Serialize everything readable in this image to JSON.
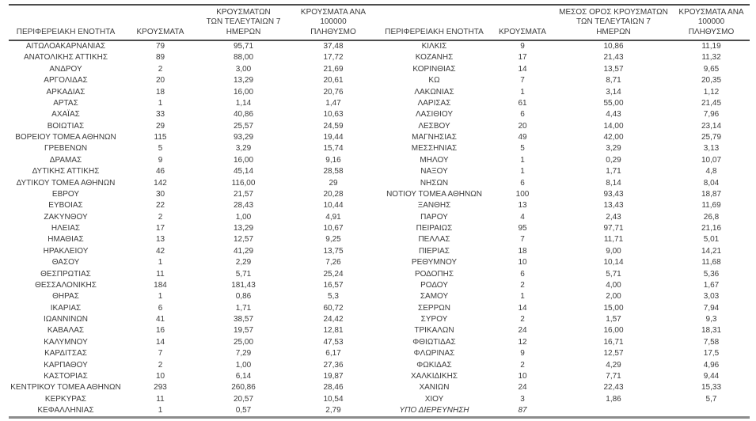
{
  "page": {
    "background": "#ffffff",
    "text_color": "#3b3b3b",
    "rule_dark": "#4d4d4d",
    "rule_light": "#8c8c8c"
  },
  "header": {
    "col_region": "ΠΕΡΙΦΕΡΕΙΑΚΗ ΕΝΟΤΗΤΑ",
    "col_cases": "ΚΡΟΥΣΜΑΤΑ",
    "col_avg7": "ΜΕΣΟΣ ΟΡΟΣ ΚΡΟΥΣΜΑΤΩΝ\nΤΩΝ ΤΕΛΕΥΤΑΙΩΝ 7\nΗΜΕΡΩΝ",
    "col_per100k": "ΚΡΟΥΣΜΑΤΑ ΑΝΑ 100000\nΠΛΗΘΥΣΜΟ"
  },
  "tables": [
    {
      "rows": [
        {
          "c": [
            "ΑΙΤΩΛΟΑΚΑΡΝΑΝΙΑΣ",
            "79",
            "95,71",
            "37,48"
          ]
        },
        {
          "c": [
            "ΑΝΑΤΟΛΙΚΗΣ ΑΤΤΙΚΗΣ",
            "89",
            "88,00",
            "17,72"
          ]
        },
        {
          "c": [
            "ΑΝΔΡΟΥ",
            "2",
            "3,00",
            "21,69"
          ]
        },
        {
          "c": [
            "ΑΡΓΟΛΙΔΑΣ",
            "20",
            "13,29",
            "20,61"
          ]
        },
        {
          "c": [
            "ΑΡΚΑΔΙΑΣ",
            "18",
            "16,00",
            "20,76"
          ]
        },
        {
          "c": [
            "ΑΡΤΑΣ",
            "1",
            "1,14",
            "1,47"
          ]
        },
        {
          "c": [
            "ΑΧΑΪΑΣ",
            "33",
            "40,86",
            "10,63"
          ]
        },
        {
          "c": [
            "ΒΟΙΩΤΙΑΣ",
            "29",
            "25,57",
            "24,59"
          ]
        },
        {
          "c": [
            "ΒΟΡΕΙΟΥ ΤΟΜΕΑ ΑΘΗΝΩΝ",
            "115",
            "93,29",
            "19,44"
          ]
        },
        {
          "c": [
            "ΓΡΕΒΕΝΩΝ",
            "5",
            "3,29",
            "15,74"
          ]
        },
        {
          "c": [
            "ΔΡΑΜΑΣ",
            "9",
            "16,00",
            "9,16"
          ]
        },
        {
          "c": [
            "ΔΥΤΙΚΗΣ ΑΤΤΙΚΗΣ",
            "46",
            "45,14",
            "28,58"
          ]
        },
        {
          "c": [
            "ΔΥΤΙΚΟΥ ΤΟΜΕΑ ΑΘΗΝΩΝ",
            "142",
            "116,00",
            "29"
          ]
        },
        {
          "c": [
            "ΕΒΡΟΥ",
            "30",
            "21,57",
            "20,28"
          ]
        },
        {
          "c": [
            "ΕΥΒΟΙΑΣ",
            "22",
            "28,43",
            "10,44"
          ]
        },
        {
          "c": [
            "ΖΑΚΥΝΘΟΥ",
            "2",
            "1,00",
            "4,91"
          ]
        },
        {
          "c": [
            "ΗΛΕΙΑΣ",
            "17",
            "13,29",
            "10,67"
          ]
        },
        {
          "c": [
            "ΗΜΑΘΙΑΣ",
            "13",
            "12,57",
            "9,25"
          ]
        },
        {
          "c": [
            "ΗΡΑΚΛΕΙΟΥ",
            "42",
            "41,29",
            "13,75"
          ]
        },
        {
          "c": [
            "ΘΑΣΟΥ",
            "1",
            "2,29",
            "7,26"
          ]
        },
        {
          "c": [
            "ΘΕΣΠΡΩΤΙΑΣ",
            "11",
            "5,71",
            "25,24"
          ]
        },
        {
          "c": [
            "ΘΕΣΣΑΛΟΝΙΚΗΣ",
            "184",
            "181,43",
            "16,57"
          ]
        },
        {
          "c": [
            "ΘΗΡΑΣ",
            "1",
            "0,86",
            "5,3"
          ]
        },
        {
          "c": [
            "ΙΚΑΡΙΑΣ",
            "6",
            "1,71",
            "60,72"
          ]
        },
        {
          "c": [
            "ΙΩΑΝΝΙΝΩΝ",
            "41",
            "38,57",
            "24,42"
          ]
        },
        {
          "c": [
            "ΚΑΒΑΛΑΣ",
            "16",
            "19,57",
            "12,81"
          ]
        },
        {
          "c": [
            "ΚΑΛΥΜΝΟΥ",
            "14",
            "25,00",
            "47,53"
          ]
        },
        {
          "c": [
            "ΚΑΡΔΙΤΣΑΣ",
            "7",
            "7,29",
            "6,17"
          ]
        },
        {
          "c": [
            "ΚΑΡΠΑΘΟΥ",
            "2",
            "1,00",
            "27,36"
          ]
        },
        {
          "c": [
            "ΚΑΣΤΟΡΙΑΣ",
            "10",
            "6,14",
            "19,87"
          ]
        },
        {
          "c": [
            "ΚΕΝΤΡΙΚΟΥ ΤΟΜΕΑ ΑΘΗΝΩΝ",
            "293",
            "260,86",
            "28,46"
          ]
        },
        {
          "c": [
            "ΚΕΡΚΥΡΑΣ",
            "11",
            "20,57",
            "10,54"
          ]
        },
        {
          "c": [
            "ΚΕΦΑΛΛΗΝΙΑΣ",
            "1",
            "0,57",
            "2,79"
          ]
        }
      ]
    },
    {
      "rows": [
        {
          "c": [
            "ΚΙΛΚΙΣ",
            "9",
            "10,86",
            "11,19"
          ]
        },
        {
          "c": [
            "ΚΟΖΑΝΗΣ",
            "17",
            "21,43",
            "11,32"
          ]
        },
        {
          "c": [
            "ΚΟΡΙΝΘΙΑΣ",
            "14",
            "13,57",
            "9,65"
          ]
        },
        {
          "c": [
            "ΚΩ",
            "7",
            "8,71",
            "20,35"
          ]
        },
        {
          "c": [
            "ΛΑΚΩΝΙΑΣ",
            "1",
            "3,14",
            "1,12"
          ]
        },
        {
          "c": [
            "ΛΑΡΙΣΑΣ",
            "61",
            "55,00",
            "21,45"
          ]
        },
        {
          "c": [
            "ΛΑΣΙΘΙΟΥ",
            "6",
            "4,43",
            "7,96"
          ]
        },
        {
          "c": [
            "ΛΕΣΒΟΥ",
            "20",
            "14,00",
            "23,14"
          ]
        },
        {
          "c": [
            "ΜΑΓΝΗΣΙΑΣ",
            "49",
            "42,00",
            "25,79"
          ]
        },
        {
          "c": [
            "ΜΕΣΣΗΝΙΑΣ",
            "5",
            "3,29",
            "3,13"
          ]
        },
        {
          "c": [
            "ΜΗΛΟΥ",
            "1",
            "0,29",
            "10,07"
          ]
        },
        {
          "c": [
            "ΝΑΞΟΥ",
            "1",
            "1,71",
            "4,8"
          ]
        },
        {
          "c": [
            "ΝΗΣΩΝ",
            "6",
            "8,14",
            "8,04"
          ]
        },
        {
          "c": [
            "ΝΟΤΙΟΥ ΤΟΜΕΑ ΑΘΗΝΩΝ",
            "100",
            "93,43",
            "18,87"
          ]
        },
        {
          "c": [
            "ΞΑΝΘΗΣ",
            "13",
            "13,43",
            "11,69"
          ]
        },
        {
          "c": [
            "ΠΑΡΟΥ",
            "4",
            "2,43",
            "26,8"
          ]
        },
        {
          "c": [
            "ΠΕΙΡΑΙΩΣ",
            "95",
            "97,71",
            "21,16"
          ]
        },
        {
          "c": [
            "ΠΕΛΛΑΣ",
            "7",
            "11,71",
            "5,01"
          ]
        },
        {
          "c": [
            "ΠΙΕΡΙΑΣ",
            "18",
            "9,00",
            "14,21"
          ]
        },
        {
          "c": [
            "ΡΕΘΥΜΝΟΥ",
            "10",
            "10,14",
            "11,68"
          ]
        },
        {
          "c": [
            "ΡΟΔΟΠΗΣ",
            "6",
            "5,71",
            "5,36"
          ]
        },
        {
          "c": [
            "ΡΟΔΟΥ",
            "2",
            "4,00",
            "1,67"
          ]
        },
        {
          "c": [
            "ΣΑΜΟΥ",
            "1",
            "2,00",
            "3,03"
          ]
        },
        {
          "c": [
            "ΣΕΡΡΩΝ",
            "14",
            "15,00",
            "7,94"
          ]
        },
        {
          "c": [
            "ΣΥΡΟΥ",
            "2",
            "1,57",
            "9,3"
          ]
        },
        {
          "c": [
            "ΤΡΙΚΑΛΩΝ",
            "24",
            "16,00",
            "18,31"
          ]
        },
        {
          "c": [
            "ΦΘΙΩΤΙΔΑΣ",
            "12",
            "16,71",
            "7,58"
          ]
        },
        {
          "c": [
            "ΦΛΩΡΙΝΑΣ",
            "9",
            "12,57",
            "17,5"
          ]
        },
        {
          "c": [
            "ΦΩΚΙΔΑΣ",
            "2",
            "4,29",
            "4,96"
          ]
        },
        {
          "c": [
            "ΧΑΛΚΙΔΙΚΗΣ",
            "10",
            "7,71",
            "9,44"
          ]
        },
        {
          "c": [
            "ΧΑΝΙΩΝ",
            "24",
            "22,43",
            "15,33"
          ]
        },
        {
          "c": [
            "ΧΙΟΥ",
            "3",
            "1,86",
            "5,7"
          ]
        },
        {
          "c": [
            "ΥΠΟ ΔΙΕΡΕΥΝΗΣΗ",
            "87",
            "",
            ""
          ],
          "italic": true
        }
      ]
    }
  ]
}
